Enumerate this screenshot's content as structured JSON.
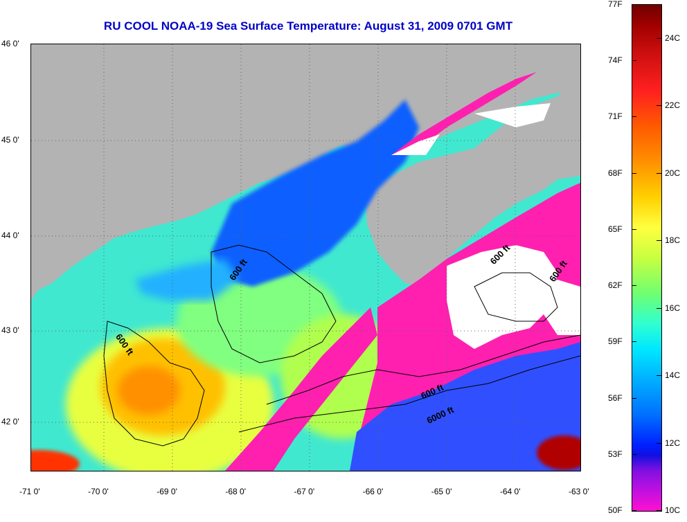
{
  "title": "RU COOL  NOAA-19  Sea Surface Temperature:  August 31, 2009 0701 GMT",
  "axes": {
    "x_ticks": [
      "-71 0'",
      "-70 0'",
      "-69 0'",
      "-68 0'",
      "-67 0'",
      "-66 0'",
      "-65 0'",
      "-64 0'",
      "-63 0'"
    ],
    "y_ticks": [
      "46 0'",
      "45 0'",
      "44 0'",
      "43 0'",
      "42 0'"
    ]
  },
  "colorbar": {
    "fahrenheit_labels": [
      "77F",
      "74F",
      "71F",
      "68F",
      "65F",
      "62F",
      "59F",
      "56F",
      "53F",
      "50F"
    ],
    "celsius_labels": [
      "24C",
      "22C",
      "20C",
      "18C",
      "16C",
      "14C",
      "12C",
      "10C"
    ],
    "range_f": [
      50,
      77
    ],
    "range_c": [
      10,
      25
    ]
  },
  "contour_labels": [
    "600 ft",
    "600 ft",
    "600 ft",
    "600 ft",
    "600 ft",
    "6000 ft"
  ],
  "colors": {
    "land": "#b3b3b3",
    "title": "#0000c8",
    "cloud": "#ffffff",
    "cold_mask": "#ff20b0"
  },
  "extent": {
    "lon": [
      -71,
      -63
    ],
    "lat": [
      41.5,
      46
    ]
  }
}
